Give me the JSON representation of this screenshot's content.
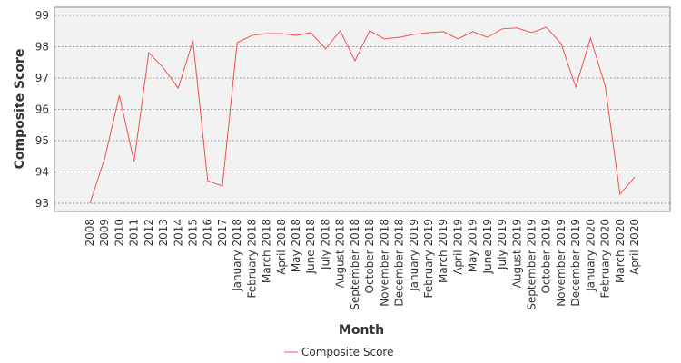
{
  "chart_data": {
    "type": "line",
    "x_label": "Month",
    "y_label": "Composite Score",
    "categories": [
      "2008",
      "2009",
      "2010",
      "2011",
      "2012",
      "2013",
      "2014",
      "2015",
      "2016",
      "2017",
      "January 2018",
      "February 2018",
      "March 2018",
      "April 2018",
      "May 2018",
      "June 2018",
      "July 2018",
      "August 2018",
      "September 2018",
      "October 2018",
      "November 2018",
      "December 2018",
      "January 2019",
      "February 2019",
      "March 2019",
      "April 2019",
      "May 2019",
      "June 2019",
      "July 2019",
      "August 2019",
      "September 2019",
      "October 2019",
      "November 2019",
      "December 2019",
      "January 2020",
      "February 2020",
      "March 2020",
      "April 2020"
    ],
    "series": [
      {
        "name": "Composite Score",
        "color": "#f05050",
        "values": [
          93.0,
          94.42,
          96.45,
          94.33,
          97.81,
          97.32,
          96.68,
          98.19,
          93.72,
          93.55,
          98.13,
          98.36,
          98.42,
          98.42,
          98.36,
          98.45,
          97.93,
          98.51,
          97.55,
          98.51,
          98.25,
          98.3,
          98.39,
          98.45,
          98.48,
          98.25,
          98.48,
          98.3,
          98.57,
          98.6,
          98.45,
          98.62,
          98.1,
          96.71,
          98.28,
          96.74,
          93.29,
          93.84
        ]
      }
    ],
    "ylim": [
      92.74,
      99.26
    ],
    "yticks": [
      93,
      94,
      95,
      96,
      97,
      98,
      99
    ],
    "grid": true
  }
}
